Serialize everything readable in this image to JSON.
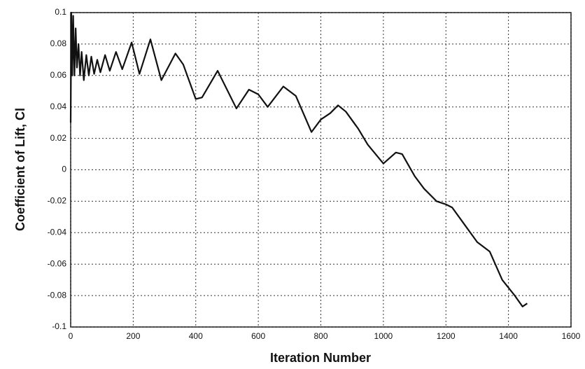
{
  "chart_data": {
    "type": "line",
    "xlabel": "Iteration Number",
    "ylabel": "Coefficient of Lift, Cl",
    "x": [
      0,
      2,
      5,
      8,
      12,
      16,
      20,
      25,
      30,
      35,
      42,
      50,
      58,
      66,
      75,
      85,
      95,
      110,
      125,
      145,
      165,
      195,
      220,
      255,
      290,
      335,
      360,
      400,
      420,
      470,
      530,
      570,
      600,
      630,
      680,
      720,
      770,
      800,
      830,
      855,
      880,
      920,
      950,
      1000,
      1040,
      1060,
      1100,
      1130,
      1170,
      1200,
      1220,
      1260,
      1300,
      1340,
      1380,
      1420,
      1445,
      1460
    ],
    "series": [
      {
        "name": "Cl",
        "color": "#111111",
        "values": [
          0.03,
          0.1,
          0.06,
          0.098,
          0.06,
          0.09,
          0.065,
          0.08,
          0.06,
          0.075,
          0.057,
          0.073,
          0.06,
          0.072,
          0.061,
          0.07,
          0.062,
          0.073,
          0.063,
          0.075,
          0.064,
          0.081,
          0.061,
          0.083,
          0.057,
          0.074,
          0.067,
          0.045,
          0.046,
          0.063,
          0.039,
          0.051,
          0.048,
          0.04,
          0.053,
          0.047,
          0.024,
          0.032,
          0.036,
          0.041,
          0.037,
          0.026,
          0.016,
          0.004,
          0.011,
          0.01,
          -0.004,
          -0.012,
          -0.02,
          -0.022,
          -0.024,
          -0.035,
          -0.046,
          -0.052,
          -0.07,
          -0.08,
          -0.087,
          -0.085
        ]
      }
    ],
    "xlim": [
      0,
      1600
    ],
    "xticks": [
      0,
      200,
      400,
      600,
      800,
      1000,
      1200,
      1400,
      1600
    ],
    "ylim": [
      -0.1,
      0.1
    ],
    "yticks": [
      0.1,
      0.08,
      0.06,
      0.04,
      0.02,
      0,
      -0.02,
      -0.04,
      -0.06,
      -0.08,
      -0.1
    ],
    "grid": true
  }
}
